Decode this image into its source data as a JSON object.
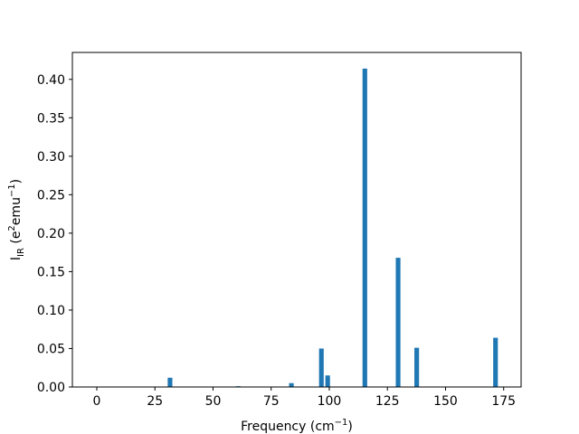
{
  "chart_data": {
    "type": "bar",
    "xlabel": {
      "main": "Frequency (cm",
      "sup": "−1",
      "end": ")"
    },
    "ylabel": {
      "main": "I",
      "sub": "IR",
      "mid": " (e",
      "sup1": "2",
      "mid2": "emu",
      "sup2": "−1",
      "end": ")"
    },
    "xlim": [
      -10.5,
      182.5
    ],
    "ylim": [
      0,
      0.435
    ],
    "xticks": [
      0,
      25,
      50,
      75,
      100,
      125,
      150,
      175
    ],
    "yticks": [
      0.0,
      0.05,
      0.1,
      0.15,
      0.2,
      0.25,
      0.3,
      0.35,
      0.4
    ],
    "bar_width": 2.0,
    "color": "#1f77b4",
    "x": [
      31.5,
      60.8,
      83.7,
      96.6,
      99.3,
      115.3,
      129.6,
      137.6,
      171.5
    ],
    "values": [
      0.012,
      0.001,
      0.005,
      0.05,
      0.015,
      0.414,
      0.168,
      0.051,
      0.064
    ],
    "grid": false,
    "legend": "none"
  }
}
